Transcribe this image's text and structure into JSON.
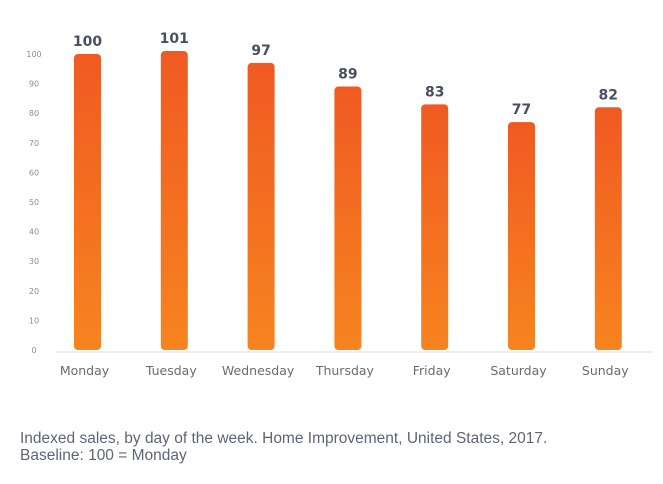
{
  "chart_data": {
    "type": "bar",
    "categories": [
      "Monday",
      "Tuesday",
      "Wednesday",
      "Thursday",
      "Friday",
      "Saturday",
      "Sunday"
    ],
    "values": [
      100,
      101,
      97,
      89,
      83,
      77,
      82
    ],
    "value_labels": [
      "100",
      "101",
      "97",
      "89",
      "83",
      "77",
      "82"
    ],
    "y_ticks": [
      0,
      10,
      20,
      30,
      40,
      50,
      60,
      70,
      80,
      90,
      100
    ],
    "ylim": [
      0,
      100
    ],
    "grid": false,
    "legend": "none",
    "colors": {
      "bar_top": "#f05a22",
      "bar_bottom": "#f7841f",
      "value_label": "#4a4f60",
      "tick_label": "#8c8c8c",
      "category_label": "#6b6b6b",
      "baseline": "#dddddd"
    }
  },
  "caption": {
    "line1": "Indexed sales, by day of the week. Home Improvement, United States, 2017.",
    "line2": "Baseline: 100 = Monday"
  }
}
